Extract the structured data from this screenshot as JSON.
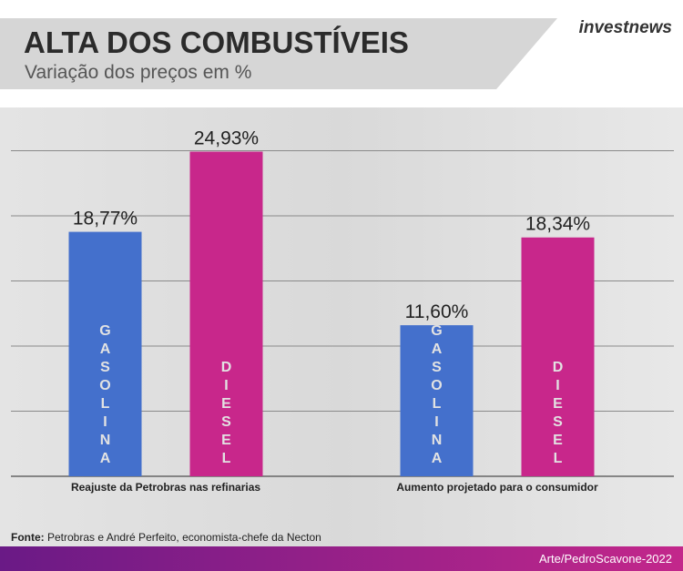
{
  "brand": "investnews",
  "chart_data": {
    "type": "bar",
    "title": "ALTA DOS COMBUSTÍVEIS",
    "subtitle": "Variação dos preços em %",
    "categories": [
      "Reajuste da Petrobras nas refinarias",
      "Aumento projetado para o consumidor"
    ],
    "series": [
      {
        "name": "GASOLINA",
        "color": "#4470cc",
        "values": [
          18.77,
          11.6
        ],
        "value_labels": [
          "18,77%",
          "11,60%"
        ]
      },
      {
        "name": "DIESEL",
        "color": "#c8278b",
        "values": [
          24.93,
          18.34
        ],
        "value_labels": [
          "24,93%",
          "18,34%"
        ]
      }
    ],
    "ylim": [
      0,
      25
    ],
    "yticks": [
      0,
      5,
      10,
      15,
      20,
      25
    ],
    "grid": true
  },
  "footer": {
    "source_label": "Fonte:",
    "source": "Petrobras e André Perfeito, economista-chefe da Necton",
    "credit": "Arte/PedroScavone-2022"
  }
}
